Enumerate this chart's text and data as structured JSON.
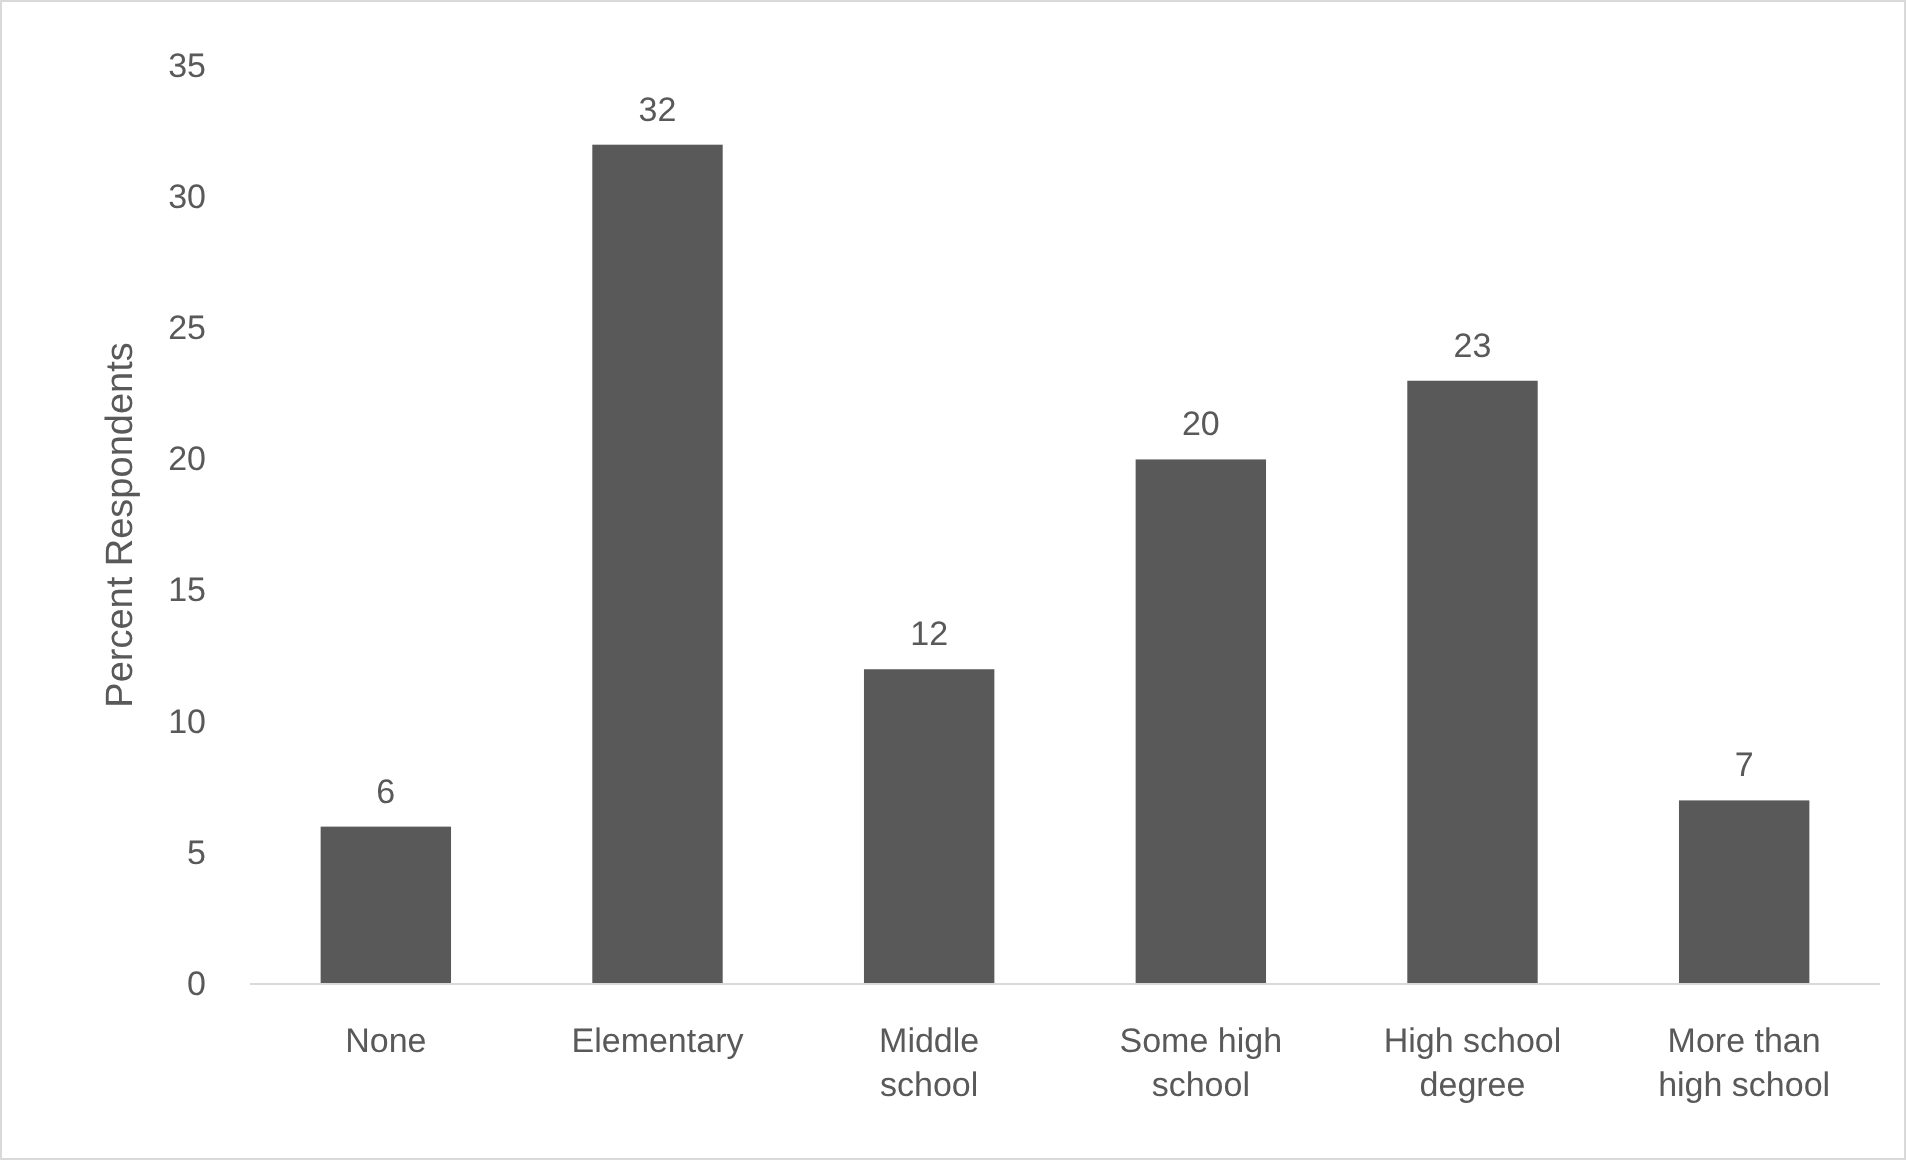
{
  "chart_data": {
    "type": "bar",
    "ylabel": "Percent Respondents",
    "categories": [
      "None",
      "Elementary",
      "Middle school",
      "Some high school",
      "High school degree",
      "More than high school"
    ],
    "values": [
      6,
      32,
      12,
      20,
      23,
      7
    ],
    "color": "#595959",
    "ylim": [
      0,
      35
    ],
    "yticks": [
      0,
      5,
      10,
      15,
      20,
      25,
      30,
      35
    ],
    "data_labels": true
  }
}
